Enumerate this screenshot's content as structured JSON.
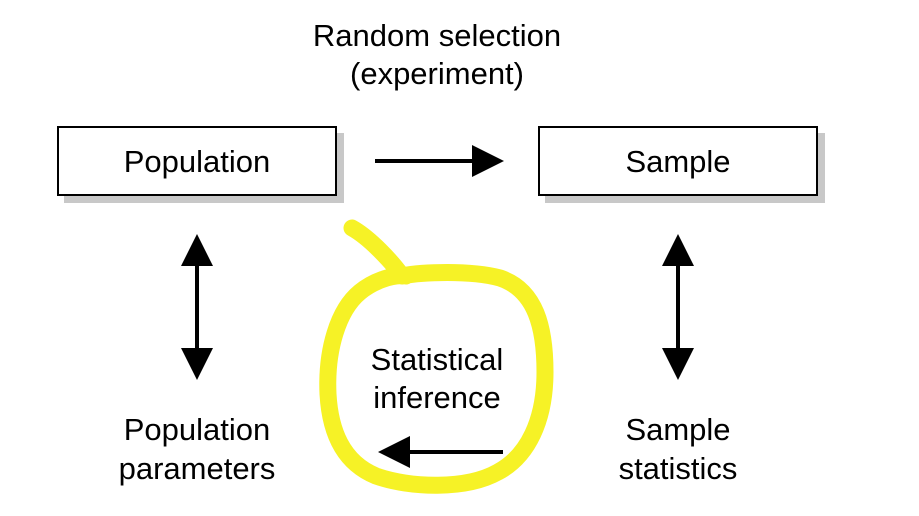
{
  "diagram": {
    "title_line1": "Random selection",
    "title_line2": "(experiment)",
    "population_box": "Population",
    "sample_box": "Sample",
    "inference_line1": "Statistical",
    "inference_line2": "inference",
    "population_parameters_line1": "Population",
    "population_parameters_line2": "parameters",
    "sample_statistics_line1": "Sample",
    "sample_statistics_line2": "statistics"
  },
  "colors": {
    "highlight": "#f4f000",
    "box_shadow": "#c8c8c8",
    "ink": "#000000"
  }
}
